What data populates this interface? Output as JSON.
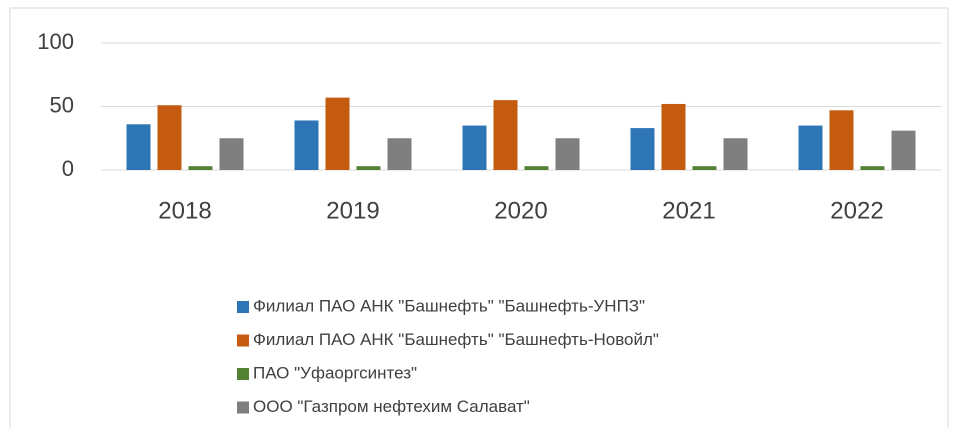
{
  "chart_data": {
    "type": "bar",
    "categories": [
      "2018",
      "2019",
      "2020",
      "2021",
      "2022"
    ],
    "series": [
      {
        "name": "Филиал ПАО АНК \"Башнефть\" \"Башнефть-УНПЗ\"",
        "color": "#2e75b6",
        "values": [
          36,
          39,
          35,
          33,
          35
        ]
      },
      {
        "name": "Филиал ПАО АНК \"Башнефть\" \"Башнефть-Новойл\"",
        "color": "#c55a11",
        "values": [
          51,
          57,
          55,
          52,
          47
        ]
      },
      {
        "name": "ПАО \"Уфаоргсинтез\"",
        "color": "#548235",
        "values": [
          3,
          3,
          3,
          3,
          3
        ]
      },
      {
        "name": "ООО \"Газпром нефтехим Салават\"",
        "color": "#7f7f7f",
        "values": [
          25,
          25,
          25,
          25,
          31
        ]
      }
    ],
    "ylim": [
      0,
      100
    ],
    "yticks": [
      0,
      50,
      100
    ],
    "grid": true,
    "legend": "bottom"
  }
}
